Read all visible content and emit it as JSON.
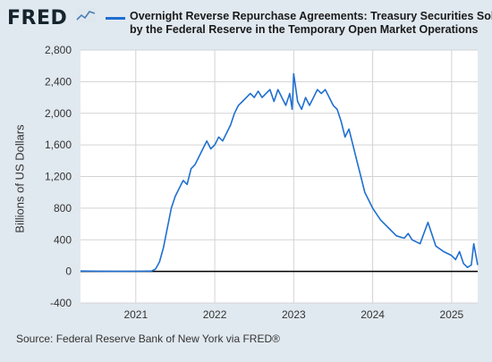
{
  "header": {
    "logo": "FRED",
    "legend_line1": "Overnight Reverse Repurchase Agreements: Treasury Securities Sold",
    "legend_line2": "by the Federal Reserve in the Temporary Open Market Operations"
  },
  "colors": {
    "series": "#1f6fd1",
    "plot_bg": "#ffffff",
    "page_bg": "#e1e9f0",
    "grid": "#d3d3d3",
    "zero_line": "#000000"
  },
  "source": "Source: Federal Reserve Bank of New York via FRED®",
  "chart_data": {
    "type": "line",
    "title": "",
    "xlabel": "",
    "ylabel": "Billions of US Dollars",
    "xlim": [
      2020.3,
      2025.33
    ],
    "ylim": [
      -400,
      2800
    ],
    "yticks": [
      -400,
      0,
      400,
      800,
      1200,
      1600,
      2000,
      2400,
      2800
    ],
    "xticks": [
      2021,
      2022,
      2023,
      2024,
      2025
    ],
    "grid": true,
    "legend": "top",
    "series": [
      {
        "name": "Overnight Reverse Repurchase Agreements: Treasury Securities Sold by the Federal Reserve in the Temporary Open Market Operations",
        "x": [
          2020.3,
          2020.5,
          2020.7,
          2020.9,
          2021.1,
          2021.2,
          2021.25,
          2021.3,
          2021.35,
          2021.4,
          2021.45,
          2021.5,
          2021.55,
          2021.6,
          2021.65,
          2021.7,
          2021.75,
          2021.8,
          2021.85,
          2021.9,
          2021.95,
          2022.0,
          2022.05,
          2022.1,
          2022.15,
          2022.2,
          2022.25,
          2022.3,
          2022.35,
          2022.4,
          2022.45,
          2022.5,
          2022.55,
          2022.6,
          2022.65,
          2022.7,
          2022.75,
          2022.8,
          2022.85,
          2022.9,
          2022.95,
          2022.98,
          2023.0,
          2023.05,
          2023.1,
          2023.15,
          2023.2,
          2023.25,
          2023.3,
          2023.35,
          2023.4,
          2023.45,
          2023.5,
          2023.55,
          2023.6,
          2023.65,
          2023.7,
          2023.75,
          2023.8,
          2023.85,
          2023.9,
          2023.95,
          2024.0,
          2024.1,
          2024.2,
          2024.3,
          2024.4,
          2024.45,
          2024.5,
          2024.6,
          2024.7,
          2024.8,
          2024.9,
          2025.0,
          2025.05,
          2025.1,
          2025.15,
          2025.2,
          2025.25,
          2025.28,
          2025.33
        ],
        "values": [
          5,
          2,
          0,
          1,
          3,
          5,
          30,
          120,
          300,
          550,
          800,
          950,
          1050,
          1150,
          1100,
          1300,
          1350,
          1450,
          1550,
          1650,
          1550,
          1600,
          1700,
          1650,
          1750,
          1850,
          2000,
          2100,
          2150,
          2200,
          2250,
          2200,
          2280,
          2200,
          2250,
          2300,
          2150,
          2300,
          2200,
          2100,
          2250,
          2050,
          2500,
          2150,
          2050,
          2200,
          2100,
          2200,
          2300,
          2250,
          2300,
          2200,
          2100,
          2050,
          1900,
          1700,
          1800,
          1600,
          1400,
          1200,
          1000,
          900,
          800,
          650,
          550,
          450,
          420,
          480,
          400,
          350,
          620,
          320,
          250,
          200,
          150,
          250,
          100,
          50,
          80,
          350,
          80
        ]
      }
    ]
  }
}
